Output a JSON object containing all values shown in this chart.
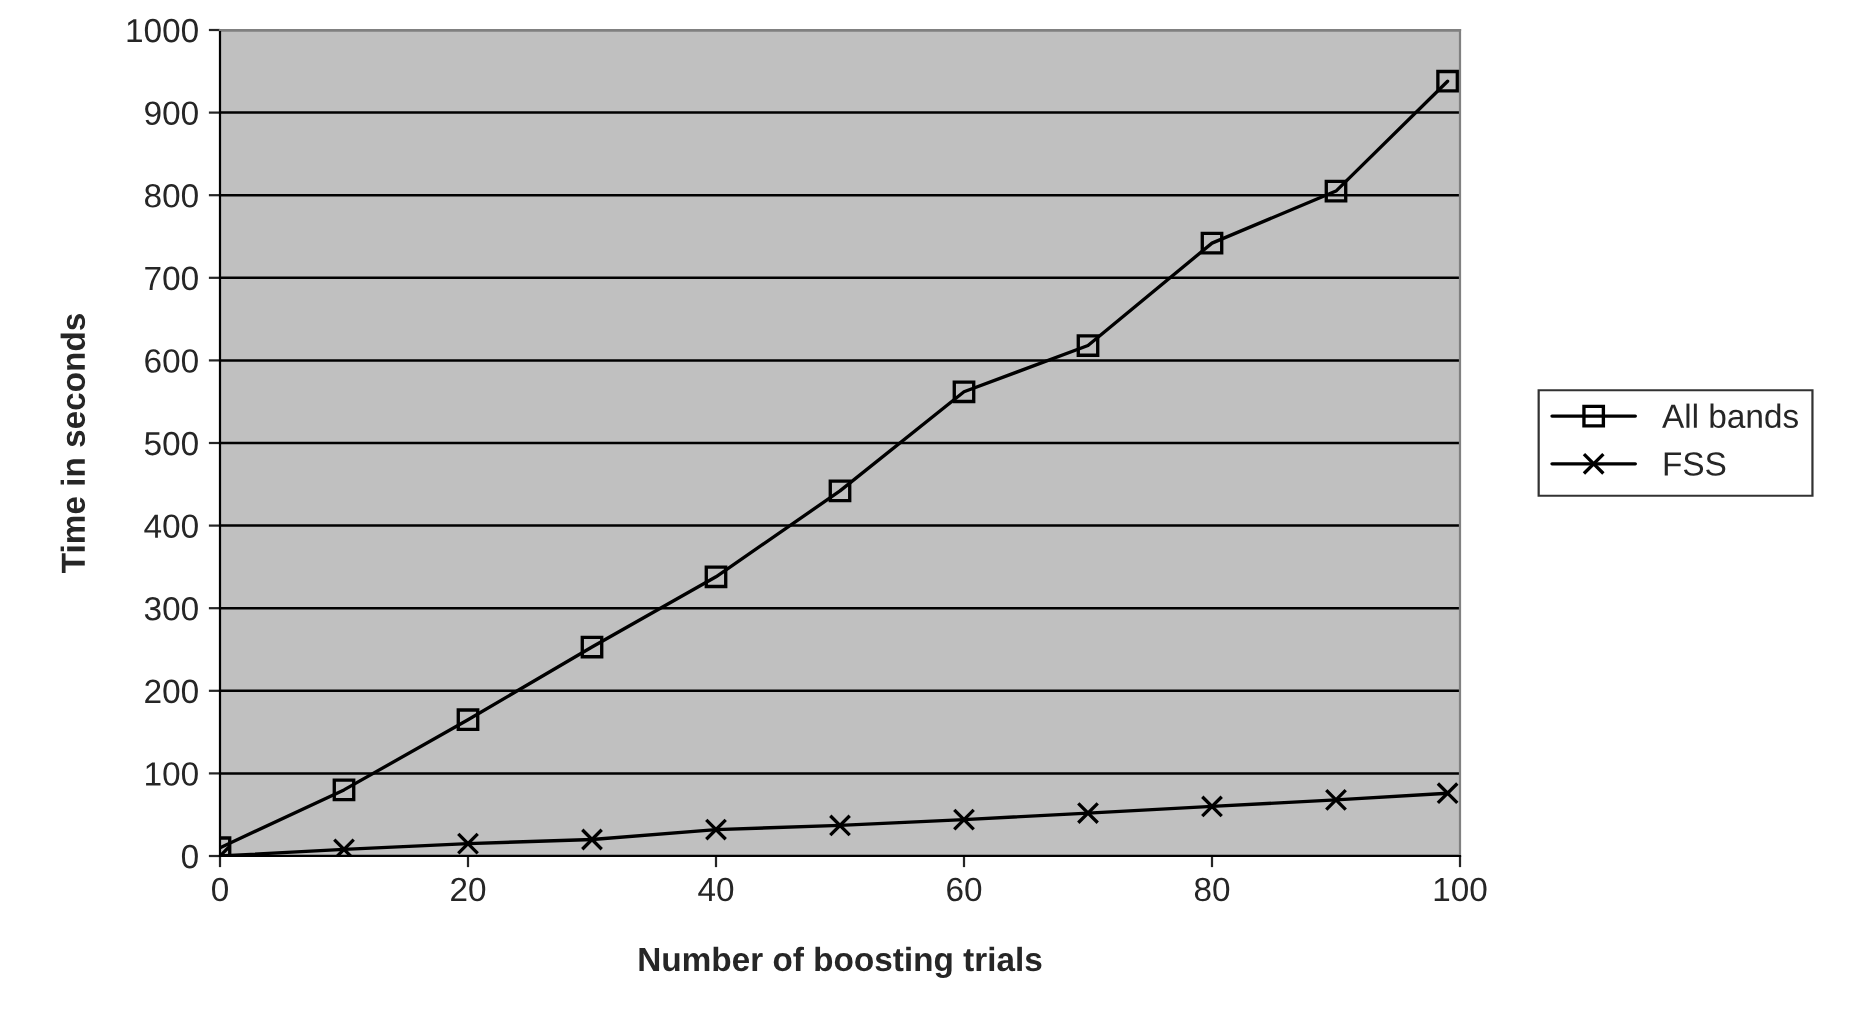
{
  "chart_data": {
    "type": "line",
    "xlabel": "Number of boosting trials",
    "ylabel": "Time in seconds",
    "xlim": [
      0,
      100
    ],
    "xticks": [
      0,
      20,
      40,
      60,
      80,
      100
    ],
    "ylim": [
      0,
      1000
    ],
    "yticks": [
      0,
      100,
      200,
      300,
      400,
      500,
      600,
      700,
      800,
      900,
      1000
    ],
    "grid": "y",
    "legend": "right",
    "series": [
      {
        "name": "All bands",
        "color": "#000000",
        "marker": "square",
        "x": [
          0,
          10,
          20,
          30,
          40,
          50,
          60,
          70,
          80,
          90,
          99
        ],
        "values": [
          10,
          80,
          165,
          253,
          338,
          442,
          562,
          618,
          742,
          805,
          938
        ]
      },
      {
        "name": "FSS",
        "color": "#000000",
        "marker": "cross",
        "x": [
          0,
          10,
          20,
          30,
          40,
          50,
          60,
          70,
          80,
          90,
          99
        ],
        "values": [
          0,
          8,
          15,
          20,
          32,
          37,
          44,
          52,
          60,
          68,
          76
        ]
      }
    ]
  }
}
